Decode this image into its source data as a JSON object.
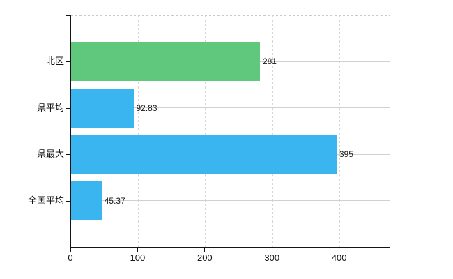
{
  "chart_data": {
    "type": "bar",
    "orientation": "horizontal",
    "title": "",
    "categories": [
      "北区",
      "県平均",
      "県最大",
      "全国平均"
    ],
    "values": [
      281,
      92.83,
      395,
      45.37
    ],
    "value_labels": [
      "281",
      "92.83",
      "395",
      "45.37"
    ],
    "bar_colors": [
      "#60c87c",
      "#3ab5ef",
      "#3ab5ef",
      "#3ab5ef"
    ],
    "x_ticks": [
      0,
      100,
      200,
      300,
      400
    ],
    "x_tick_labels": [
      "0",
      "100",
      "200",
      "300",
      "400"
    ],
    "xlim": [
      0,
      475
    ],
    "grid": true,
    "legend": false,
    "colors": {
      "background": "#ffffff",
      "axis": "#141414",
      "grid_horizontal": "#ccd4cc",
      "grid_vertical": "#d5d5d5",
      "plot_top_border": "#c9c9c9",
      "text": "#1a1a1a"
    }
  }
}
